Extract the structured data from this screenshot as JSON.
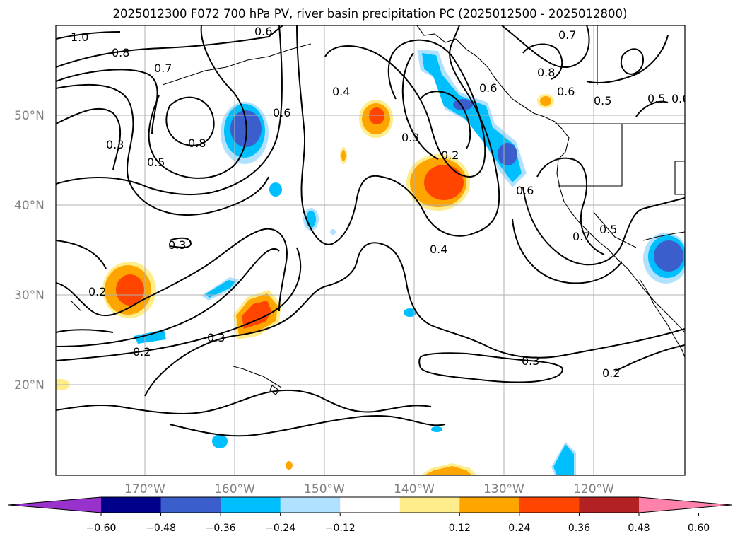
{
  "title": "2025012300 F072 700 hPa PV, river basin precipitation PC (2025012500 - 2025012800)",
  "map": {
    "lat_labels": [
      "50°N",
      "40°N",
      "30°N",
      "20°N"
    ],
    "lon_labels": [
      "170°W",
      "160°W",
      "150°W",
      "140°W",
      "130°W",
      "120°W"
    ],
    "contour_labels": [
      "1.0",
      "0.8",
      "0.7",
      "0.6",
      "0.3",
      "0.8",
      "0.5",
      "0.6",
      "0.4",
      "0.3",
      "0.2",
      "0.6",
      "0.7",
      "0.8",
      "0.6",
      "0.5",
      "0.5",
      "0.6",
      "0.3",
      "0.2",
      "0.4",
      "0.7",
      "0.5",
      "0.2",
      "0.3",
      "0.3",
      "0.2"
    ]
  },
  "colorbar": {
    "ticks": [
      "−0.60",
      "−0.48",
      "−0.36",
      "−0.24",
      "−0.12",
      "0.12",
      "0.24",
      "0.36",
      "0.48",
      "0.60"
    ],
    "colors": [
      "#9932cc",
      "#00008b",
      "#3a5fcd",
      "#00bfff",
      "#b0e2ff",
      "#ffffff",
      "#ffec8b",
      "#ffa500",
      "#ff4500",
      "#b22222",
      "#ff82ab"
    ]
  },
  "colors": {
    "neg_strong": "#3a5fcd",
    "neg_mid": "#00bfff",
    "neg_weak": "#b0e2ff",
    "pos_weak": "#ffec8b",
    "pos_mid": "#ffa500",
    "pos_strong": "#ff4500"
  }
}
